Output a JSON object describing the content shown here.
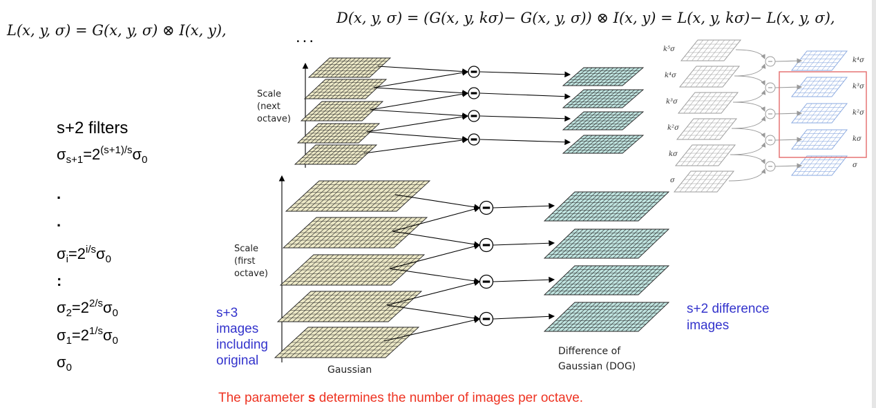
{
  "formulas": {
    "left": "L(x, y, σ) = G(x, y, σ) ⊗ I(x, y),",
    "right": "D(x, y, σ) = (G(x, y, kσ)− G(x, y, σ)) ⊗ I(x, y) = L(x, y, kσ)− L(x, y, σ),"
  },
  "left_list": {
    "filters": "s+2 filters",
    "s1_pre": "σ",
    "s1_sub": "s+1",
    "s1_eq": "=2",
    "s1_sup": "(s+1)/s",
    "s1_post": "σ",
    "s1_sub2": "0",
    "dot1": ".",
    "dot2": ".",
    "si_pre": "σ",
    "si_sub": "i",
    "si_eq": "=2",
    "si_sup": "i/s",
    "si_post": "σ",
    "si_sub2": "0",
    "colon": ":",
    "s2_pre": "σ",
    "s2_sub": "2",
    "s2_eq": "=2",
    "s2_sup": "2/s",
    "s2_post": "σ",
    "s2_sub2": "0",
    "s1b_pre": "σ",
    "s1b_sub": "1",
    "s1b_eq": "=2",
    "s1b_sup": "1/s",
    "s1b_post": "σ",
    "s1b_sub2": "0",
    "s0_pre": "σ",
    "s0_sub": "0"
  },
  "labels": {
    "ellipsis": "...",
    "scale_next": [
      "Scale",
      "(next",
      "octave)"
    ],
    "scale_first": [
      "Scale",
      "(first",
      "octave)"
    ],
    "gaussian": "Gaussian",
    "dog": [
      "Difference of",
      "Gaussian (DOG)"
    ],
    "s3_images": [
      "s+3",
      "images",
      "including",
      "original"
    ],
    "s2_diff": [
      "s+2 difference",
      "images"
    ],
    "minus": "−"
  },
  "inset": {
    "left_labels": [
      "k⁵σ",
      "k⁴σ",
      "k³σ",
      "k²σ",
      "kσ",
      "σ"
    ],
    "right_labels": [
      "k⁴σ",
      "k³σ",
      "k²σ",
      "kσ",
      "σ"
    ]
  },
  "footer": {
    "pre": "The parameter ",
    "bold": "s",
    "post": " determines the number of images per octave."
  },
  "colors": {
    "gauss_fill": "#ece8c6",
    "dog_fill": "#bfe3df",
    "grid": "#222222",
    "blue_text": "#3333cc",
    "red_text": "#ee3322",
    "inset_gray": "#9a9a9a",
    "inset_blue": "#8aa9e0",
    "inset_box": "#e57373"
  }
}
